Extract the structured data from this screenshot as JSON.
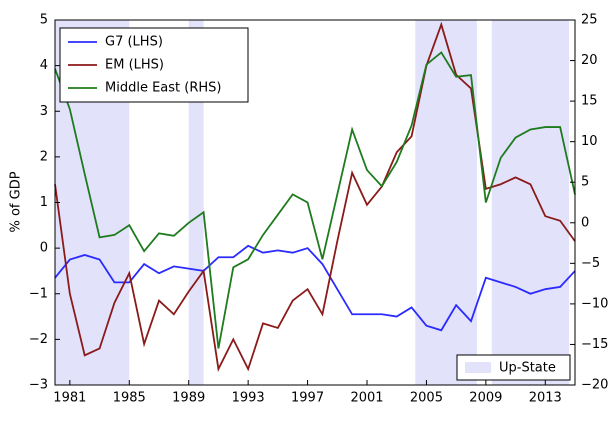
{
  "chart_data": {
    "type": "line",
    "y_label": "% of GDP",
    "x": [
      1980,
      1981,
      1982,
      1983,
      1984,
      1985,
      1986,
      1987,
      1988,
      1989,
      1990,
      1991,
      1992,
      1993,
      1994,
      1995,
      1996,
      1997,
      1998,
      1999,
      2000,
      2001,
      2002,
      2003,
      2004,
      2005,
      2006,
      2007,
      2008,
      2009,
      2010,
      2011,
      2012,
      2013,
      2014,
      2015
    ],
    "xlim": [
      1980,
      2015
    ],
    "xticks": [
      1981,
      1985,
      1989,
      1993,
      1997,
      2001,
      2005,
      2009,
      2013
    ],
    "ylim": [
      -3,
      5
    ],
    "yticks": [
      {
        "value": -3,
        "label": "−3"
      },
      {
        "value": -2,
        "label": "−2"
      },
      {
        "value": -1,
        "label": "−1"
      },
      0,
      1,
      2,
      3,
      4,
      5
    ],
    "y2lim": [
      -20,
      25
    ],
    "y2ticks": [
      {
        "value": -20,
        "label": "−20"
      },
      {
        "value": -15,
        "label": "−15"
      },
      {
        "value": -10,
        "label": "−10"
      },
      {
        "value": -5,
        "label": "−5"
      },
      0,
      5,
      10,
      15,
      20,
      25
    ],
    "legend": "upper left",
    "series": [
      {
        "name": "G7 (LHS)",
        "color": "#2b2bff",
        "values": [
          -0.65,
          -0.25,
          -0.15,
          -0.25,
          -0.75,
          -0.75,
          -0.35,
          -0.55,
          -0.4,
          -0.45,
          -0.5,
          -0.2,
          -0.2,
          0.05,
          -0.1,
          -0.05,
          -0.1,
          0.0,
          -0.35,
          -0.9,
          -1.45,
          -1.45,
          -1.45,
          -1.5,
          -1.3,
          -1.7,
          -1.8,
          -1.25,
          -1.6,
          -0.65,
          -0.75,
          -0.85,
          -1.0,
          -0.9,
          -0.85,
          -0.5
        ]
      },
      {
        "name": "EM (LHS)",
        "color": "#8b1a1a",
        "values": [
          1.4,
          -1.0,
          -2.35,
          -2.2,
          -1.2,
          -0.55,
          -2.1,
          -1.15,
          -1.45,
          -0.95,
          -0.5,
          -2.65,
          -2.0,
          -2.65,
          -1.65,
          -1.75,
          -1.15,
          -0.9,
          -1.45,
          0.15,
          1.65,
          0.95,
          1.35,
          2.1,
          2.45,
          4.0,
          4.9,
          3.8,
          3.5,
          1.3,
          1.4,
          1.55,
          1.4,
          0.7,
          0.6,
          0.15
        ]
      },
      {
        "name": "Middle East (RHS)",
        "color": "#1e7b1e",
        "axis": "y2",
        "values": [
          19,
          14,
          6,
          -1.8,
          -1.5,
          -0.3,
          -3.5,
          -1.3,
          -1.6,
          0,
          1.3,
          -15.5,
          -5.5,
          -4.5,
          -1.5,
          1,
          3.5,
          2.5,
          -4.5,
          3.5,
          11.5,
          6.5,
          4.5,
          7.5,
          12,
          19.5,
          21,
          18,
          18.2,
          2.5,
          8,
          10.5,
          11.5,
          11.8,
          11.8,
          3.5
        ]
      }
    ],
    "shading": {
      "name": "Up-State",
      "color": "#e2e2fb",
      "ranges": [
        [
          1980,
          1985
        ],
        [
          1989,
          1990
        ],
        [
          2004.25,
          2008.4
        ],
        [
          2009.4,
          2014.6
        ]
      ]
    }
  }
}
